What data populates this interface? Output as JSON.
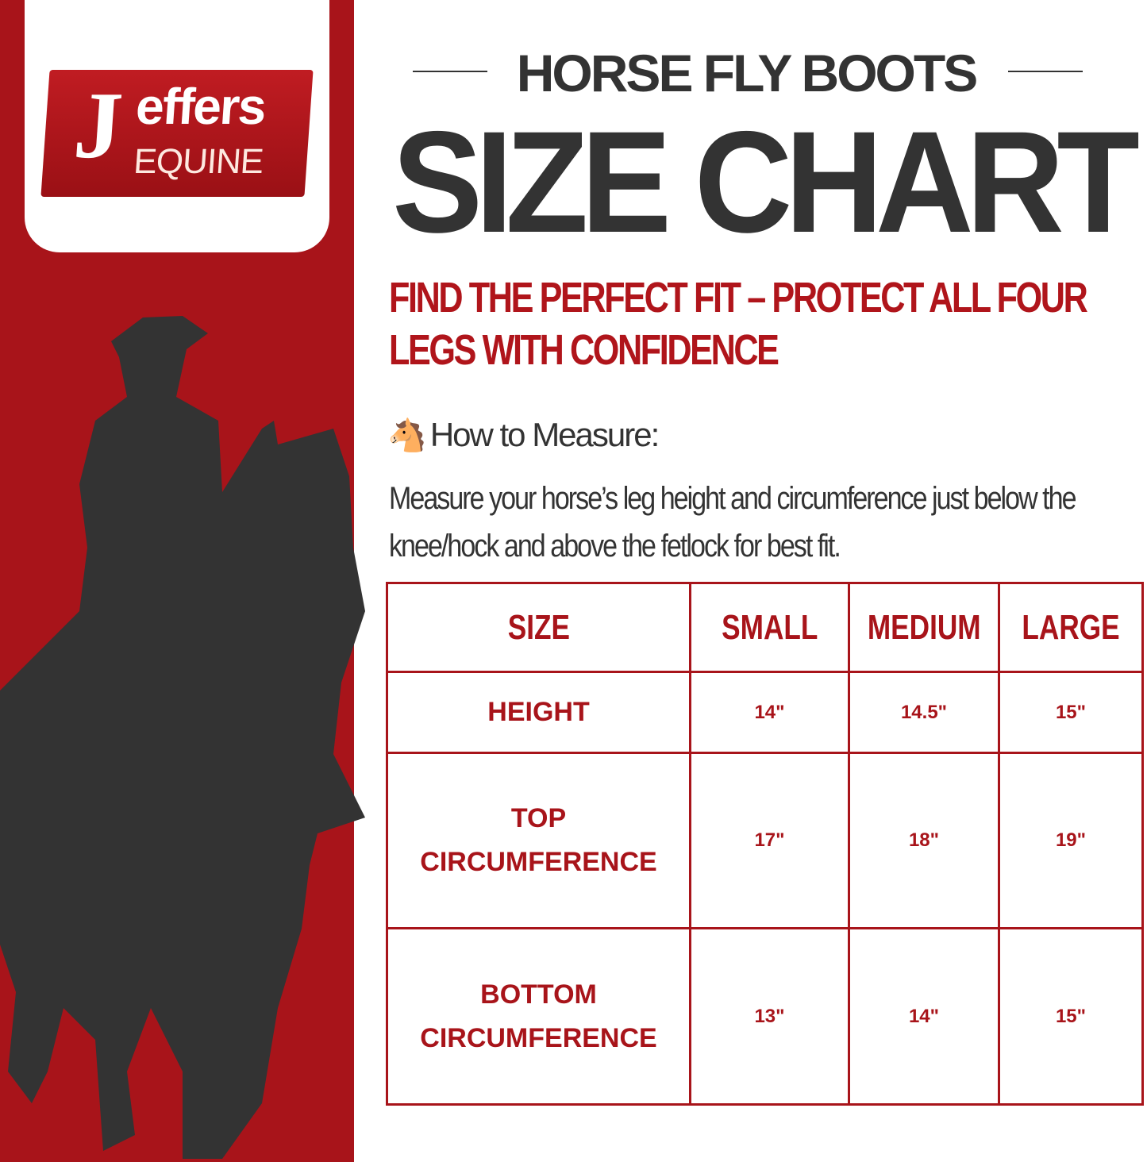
{
  "brand": {
    "logo_text": "Jeffers",
    "logo_subtext": "EQUINE"
  },
  "header": {
    "subtitle": "HORSE FLY BOOTS",
    "title": "SIZE CHART"
  },
  "tagline": "FIND THE PERFECT FIT – PROTECT ALL FOUR LEGS WITH CONFIDENCE",
  "measure": {
    "icon": "horse-face-icon",
    "heading": "How to Measure:",
    "text": "Measure your horse’s leg height and circumference just below the knee/hock and above the fetlock for best fit."
  },
  "table": {
    "headers": [
      "SIZE",
      "SMALL",
      "MEDIUM",
      "LARGE"
    ],
    "rows": [
      {
        "label": [
          "HEIGHT"
        ],
        "values": [
          "14\"",
          "14.5\"",
          "15\""
        ]
      },
      {
        "label": [
          "TOP",
          "CIRCUMFERENCE"
        ],
        "values": [
          "17\"",
          "18\"",
          "19\""
        ]
      },
      {
        "label": [
          "BOTTOM",
          "CIRCUMFERENCE"
        ],
        "values": [
          "13\"",
          "14\"",
          "15\""
        ]
      }
    ]
  },
  "colors": {
    "brand_red": "#a8141a",
    "text_dark": "#333333"
  }
}
